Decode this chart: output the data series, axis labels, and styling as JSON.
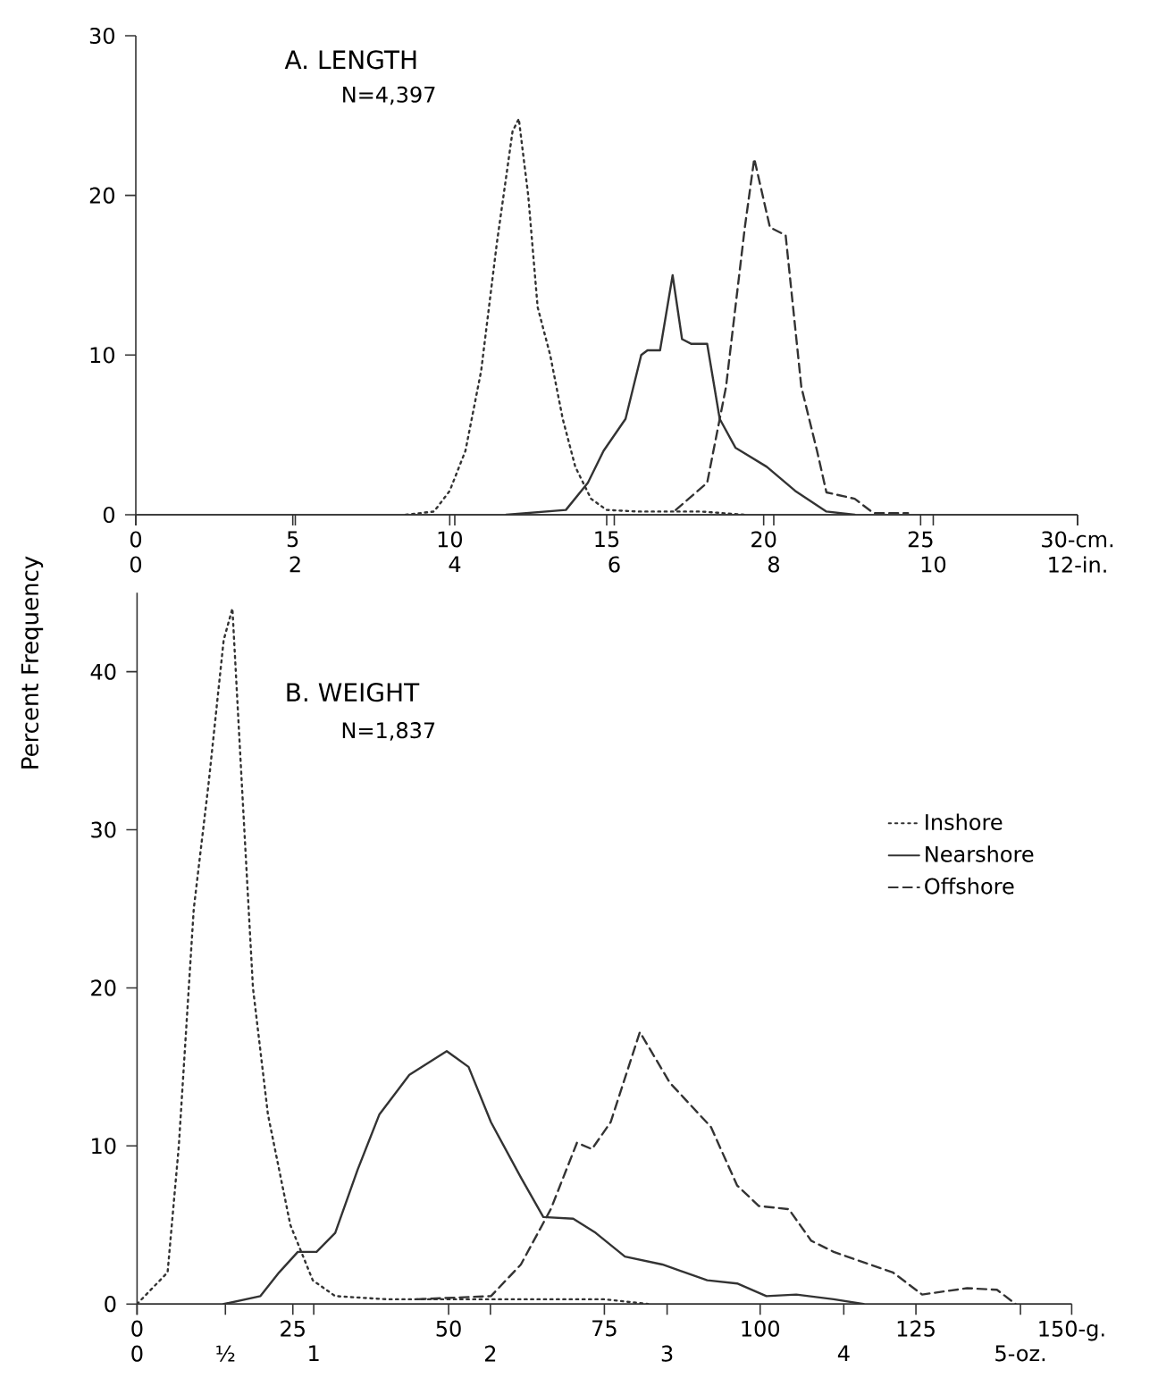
{
  "chart_data": [
    {
      "type": "line",
      "title": "A. LENGTH",
      "subtitle": "N=4,397",
      "xlim": [
        0,
        30
      ],
      "xticks": [
        0,
        5,
        10,
        15,
        20,
        25,
        {
          "value": 30,
          "label": "30-cm."
        }
      ],
      "x2lim": [
        0,
        11.81
      ],
      "x2ticks": [
        0,
        2,
        4,
        6,
        8,
        10,
        {
          "value": 11.81,
          "label": "12-in."
        }
      ],
      "ylim": [
        0,
        30
      ],
      "yticks": [
        0,
        10,
        20,
        30
      ],
      "grid": false,
      "legend": false,
      "marker": "none",
      "series": [
        {
          "color": "#333333",
          "line_style": "dotted",
          "x": [
            8.6,
            9.5,
            10.0,
            10.5,
            11.0,
            11.5,
            12.0,
            12.2,
            12.5,
            12.8,
            13.2,
            13.6,
            14.0,
            14.5,
            15.0,
            16.0,
            17.0,
            18.0,
            19.4
          ],
          "values": [
            0,
            0.2,
            1.5,
            4,
            9,
            17,
            24,
            24.8,
            20,
            13,
            10,
            6,
            3,
            1,
            0.3,
            0.2,
            0.2,
            0.2,
            0
          ]
        },
        {
          "color": "#333333",
          "line_style": "solid",
          "x": [
            11.8,
            13.7,
            14.4,
            14.9,
            15.6,
            16.1,
            16.3,
            16.7,
            17.1,
            17.4,
            17.7,
            18.2,
            18.6,
            19.1,
            20.1,
            21.0,
            22.0,
            22.9
          ],
          "values": [
            0,
            0.3,
            2,
            4,
            6,
            10,
            10.3,
            10.3,
            15,
            11,
            10.7,
            10.7,
            6,
            4.2,
            3,
            1.5,
            0.2,
            0
          ]
        },
        {
          "color": "#333333",
          "line_style": "dashed",
          "x": [
            17.2,
            18.2,
            18.8,
            19.4,
            19.7,
            20.2,
            20.7,
            21.2,
            21.7,
            22.0,
            22.9,
            23.5,
            24.6
          ],
          "values": [
            0.3,
            2,
            8,
            18,
            22.3,
            18,
            17.5,
            8,
            4,
            1.4,
            1,
            0.1,
            0.1
          ]
        }
      ]
    },
    {
      "type": "line",
      "title": "B. WEIGHT",
      "subtitle": "N=1,837",
      "ylabel": "Percent Frequency",
      "xlim": [
        0,
        150
      ],
      "xticks": [
        0,
        25,
        50,
        75,
        100,
        125,
        {
          "value": 150,
          "label": "150-g."
        }
      ],
      "x2lim": [
        0,
        5.29
      ],
      "x2ticks": [
        0,
        {
          "value": 0.5,
          "label": "½"
        },
        1,
        2,
        3,
        4,
        {
          "value": 5,
          "label": "5-oz."
        }
      ],
      "ylim": [
        0,
        45
      ],
      "yticks": [
        0,
        10,
        20,
        30,
        40
      ],
      "grid": false,
      "legend": "right",
      "marker": "none",
      "series": [
        {
          "name": "Inshore",
          "color": "#333333",
          "line_style": "dotted",
          "x": [
            0,
            4.9,
            6.7,
            9.1,
            11.5,
            13.9,
            15.3,
            16.8,
            18.6,
            21.0,
            24.6,
            28.2,
            31.8,
            40,
            60,
            75,
            82
          ],
          "values": [
            0,
            2,
            10,
            25,
            33,
            42,
            44,
            33,
            20,
            12,
            5,
            1.5,
            0.5,
            0.3,
            0.3,
            0.3,
            0
          ]
        },
        {
          "name": "Nearshore",
          "color": "#333333",
          "line_style": "solid",
          "x": [
            13.9,
            19.8,
            22.8,
            25.8,
            28.8,
            31.8,
            35.4,
            38.9,
            43.7,
            49.7,
            53.2,
            56.8,
            61.6,
            65.2,
            70,
            73.6,
            78.3,
            84.3,
            91.5,
            96.3,
            101,
            105.8,
            111.8,
            116.6
          ],
          "values": [
            0,
            0.5,
            2,
            3.3,
            3.3,
            4.5,
            8.5,
            12,
            14.5,
            16,
            15,
            11.5,
            8,
            5.5,
            5.4,
            4.5,
            3,
            2.5,
            1.5,
            1.3,
            0.5,
            0.6,
            0.3,
            0
          ]
        },
        {
          "name": "Offshore",
          "color": "#333333",
          "line_style": "dashed",
          "x": [
            44.9,
            56.8,
            61.6,
            66.4,
            70.6,
            73,
            76,
            80.7,
            85.5,
            92.1,
            96.3,
            99.8,
            104.6,
            108.2,
            111.8,
            115.4,
            121.3,
            126,
            133.2,
            138,
            141
          ],
          "values": [
            0.3,
            0.5,
            2.5,
            6,
            10.2,
            9.8,
            11.5,
            17.2,
            14,
            11.2,
            7.5,
            6.2,
            6,
            4,
            3.3,
            2.8,
            2,
            0.6,
            1,
            0.9,
            0
          ]
        }
      ]
    }
  ]
}
